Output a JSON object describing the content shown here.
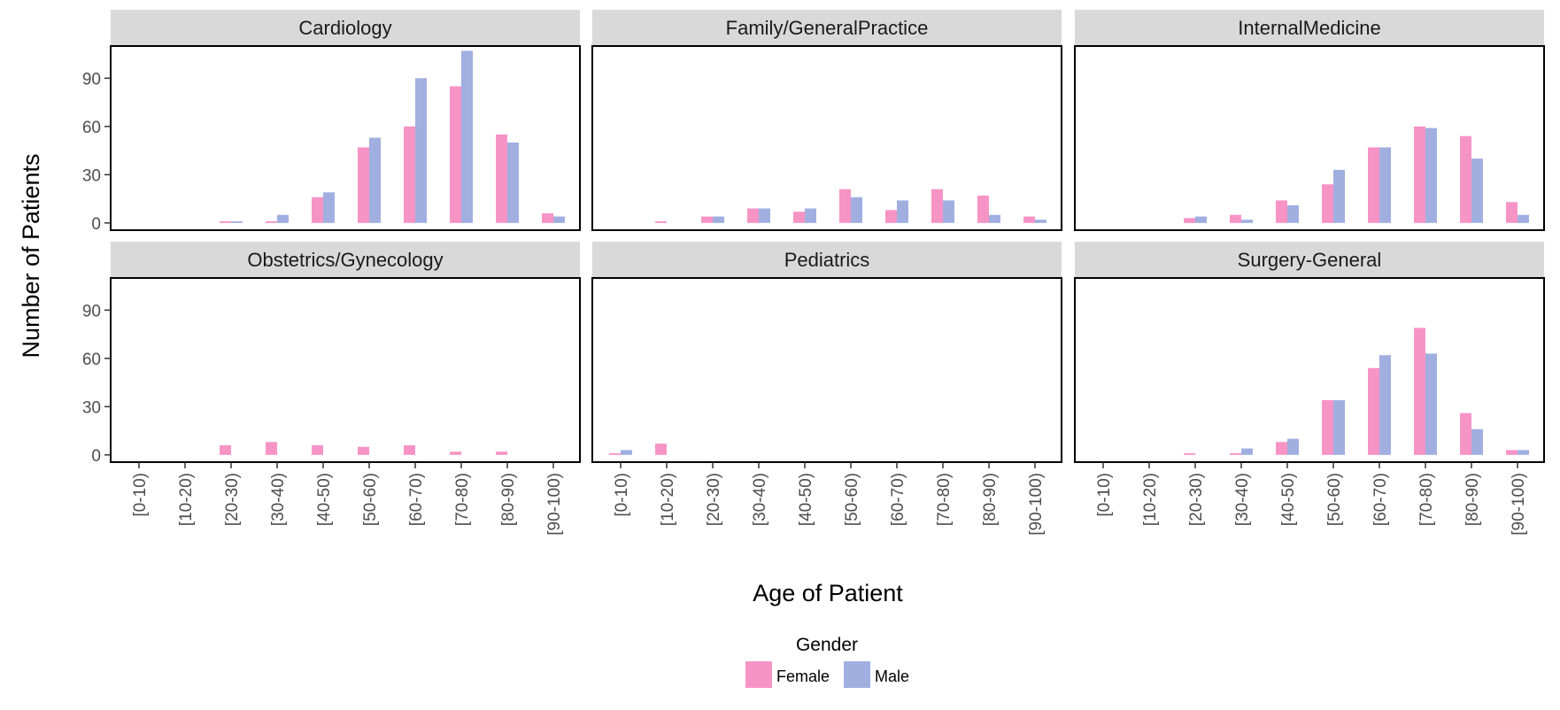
{
  "chart_data": {
    "type": "bar",
    "layout": "facet-grid 2x3",
    "xlabel": "Age of Patient",
    "ylabel": "Number of Patients",
    "ylim": [
      0,
      110
    ],
    "yticks": [
      0,
      30,
      60,
      90
    ],
    "categories": [
      "[0-10)",
      "[10-20)",
      "[20-30)",
      "[30-40)",
      "[40-50)",
      "[50-60)",
      "[60-70)",
      "[70-80)",
      "[80-90)",
      "[90-100)"
    ],
    "legend": {
      "title": "Gender",
      "position": "bottom",
      "entries": [
        {
          "name": "Female",
          "color": "#F794C6"
        },
        {
          "name": "Male",
          "color": "#A0AFE0"
        }
      ]
    },
    "facets": [
      {
        "title": "Cardiology",
        "series": [
          {
            "name": "Female",
            "values": [
              0,
              0,
              1,
              1,
              16,
              47,
              60,
              85,
              55,
              6
            ]
          },
          {
            "name": "Male",
            "values": [
              0,
              0,
              1,
              5,
              19,
              53,
              90,
              107,
              50,
              4
            ]
          }
        ]
      },
      {
        "title": "Family/GeneralPractice",
        "series": [
          {
            "name": "Female",
            "values": [
              0,
              1,
              4,
              9,
              7,
              21,
              8,
              21,
              17,
              4
            ]
          },
          {
            "name": "Male",
            "values": [
              0,
              0,
              4,
              9,
              9,
              16,
              14,
              14,
              5,
              2
            ]
          }
        ]
      },
      {
        "title": "InternalMedicine",
        "series": [
          {
            "name": "Female",
            "values": [
              0,
              0,
              3,
              5,
              14,
              24,
              47,
              60,
              54,
              13
            ]
          },
          {
            "name": "Male",
            "values": [
              0,
              0,
              4,
              2,
              11,
              33,
              47,
              59,
              40,
              5
            ]
          }
        ]
      },
      {
        "title": "Obstetrics/Gynecology",
        "series": [
          {
            "name": "Female",
            "values": [
              0,
              0,
              6,
              8,
              6,
              5,
              6,
              2,
              2,
              0
            ]
          },
          {
            "name": "Male",
            "values": [
              0,
              0,
              0,
              0,
              0,
              0,
              0,
              0,
              0,
              0
            ]
          }
        ]
      },
      {
        "title": "Pediatrics",
        "series": [
          {
            "name": "Female",
            "values": [
              1,
              7,
              0,
              0,
              0,
              0,
              0,
              0,
              0,
              0
            ]
          },
          {
            "name": "Male",
            "values": [
              3,
              0,
              0,
              0,
              0,
              0,
              0,
              0,
              0,
              0
            ]
          }
        ]
      },
      {
        "title": "Surgery-General",
        "series": [
          {
            "name": "Female",
            "values": [
              0,
              0,
              1,
              1,
              8,
              34,
              54,
              79,
              26,
              3
            ]
          },
          {
            "name": "Male",
            "values": [
              0,
              0,
              0,
              4,
              10,
              34,
              62,
              63,
              16,
              3
            ]
          }
        ]
      }
    ]
  }
}
